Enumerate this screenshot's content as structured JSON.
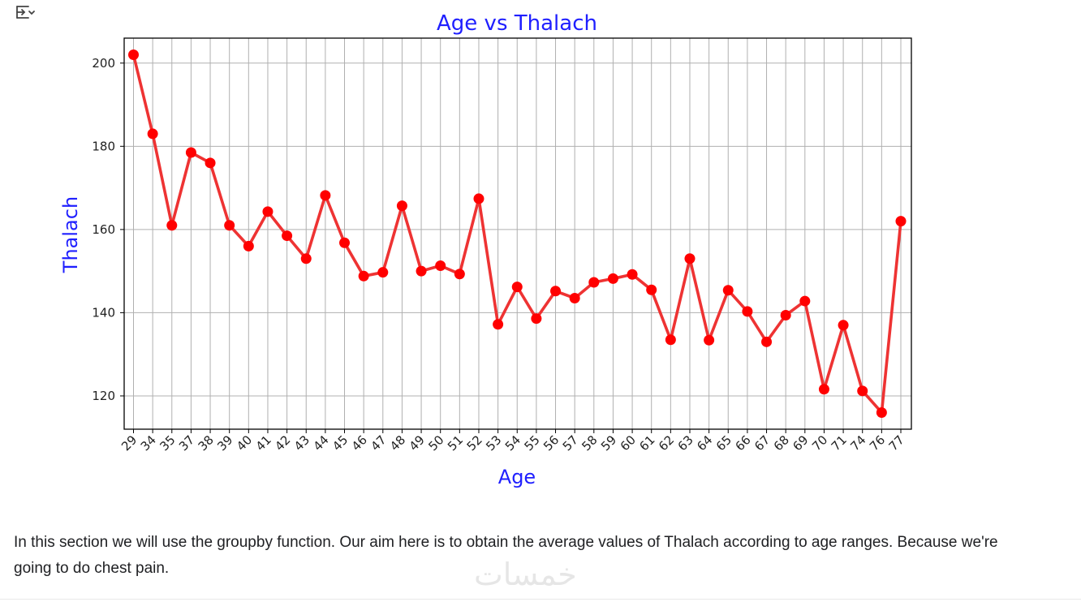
{
  "toolbar": {
    "output_toggle_icon": "output-toggle-icon"
  },
  "chart_data": {
    "type": "line",
    "title": "Age vs Thalach",
    "xlabel": "Age",
    "ylabel": "Thalach",
    "categories": [
      "29",
      "34",
      "35",
      "37",
      "38",
      "39",
      "40",
      "41",
      "42",
      "43",
      "44",
      "45",
      "46",
      "47",
      "48",
      "49",
      "50",
      "51",
      "52",
      "53",
      "54",
      "55",
      "56",
      "57",
      "58",
      "59",
      "60",
      "61",
      "62",
      "63",
      "64",
      "65",
      "66",
      "67",
      "68",
      "69",
      "70",
      "71",
      "74",
      "76",
      "77"
    ],
    "series": [
      {
        "values": [
          202,
          183,
          161,
          178.5,
          176,
          161,
          156,
          164.3,
          158.5,
          153,
          168.2,
          156.8,
          148.8,
          149.7,
          165.7,
          150,
          151.3,
          149.3,
          167.4,
          137.2,
          146.2,
          138.6,
          145.2,
          143.5,
          147.3,
          148.2,
          149.2,
          145.5,
          133.5,
          153,
          133.4,
          145.4,
          140.3,
          133,
          139.4,
          142.8,
          121.6,
          137,
          121.2,
          116,
          162
        ],
        "color": "#ff0000",
        "line_color": "#ee3333"
      }
    ],
    "ylim": [
      112,
      206
    ],
    "yticks": [
      120,
      140,
      160,
      180,
      200
    ],
    "grid": true,
    "x_tick_rotation": 45,
    "title_color": "#1f1fff"
  },
  "note": {
    "text": "In this section we will use the groupby function. Our aim here is to obtain the average values of Thalach according to age ranges. Because we're going to do chest pain."
  },
  "watermark": {
    "text": "خمسات"
  }
}
